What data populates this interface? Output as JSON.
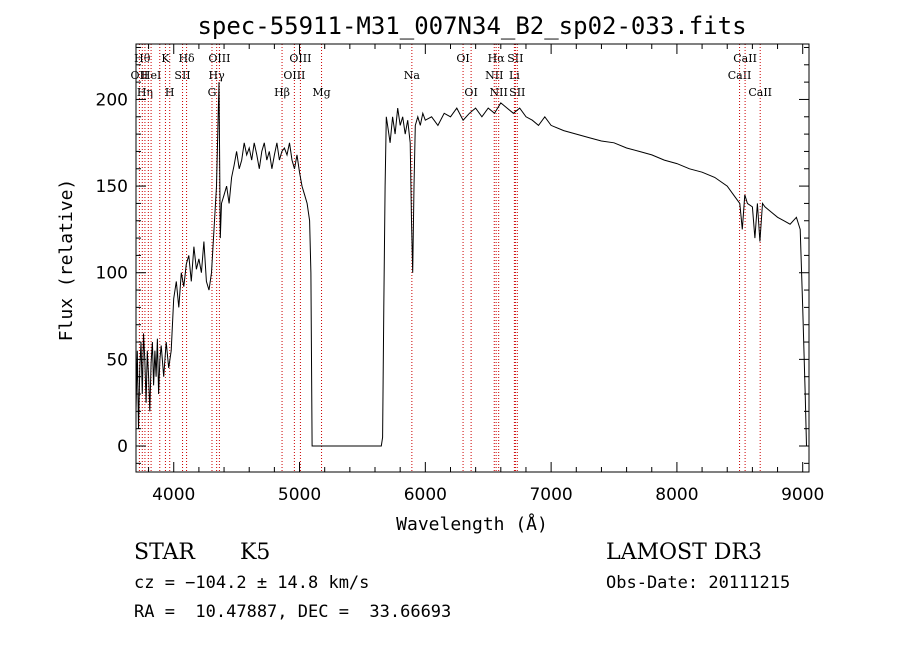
{
  "chart_data": {
    "type": "line",
    "title": "spec-55911-M31_007N34_B2_sp02-033.fits",
    "xlabel": "Wavelength (Å)",
    "ylabel": "Flux (relative)",
    "xlim": [
      3700,
      9050
    ],
    "ylim": [
      -15,
      232
    ],
    "xticks": [
      4000,
      5000,
      6000,
      7000,
      8000,
      9000
    ],
    "yticks": [
      0,
      50,
      100,
      150,
      200
    ],
    "grid": false,
    "line_color": "#000000",
    "marker_color": "#cc0000",
    "series": [
      {
        "points": [
          [
            3700,
            20
          ],
          [
            3710,
            55
          ],
          [
            3720,
            10
          ],
          [
            3730,
            45
          ],
          [
            3740,
            60
          ],
          [
            3750,
            30
          ],
          [
            3760,
            65
          ],
          [
            3770,
            50
          ],
          [
            3780,
            25
          ],
          [
            3790,
            55
          ],
          [
            3800,
            40
          ],
          [
            3810,
            20
          ],
          [
            3820,
            48
          ],
          [
            3830,
            60
          ],
          [
            3840,
            35
          ],
          [
            3850,
            55
          ],
          [
            3860,
            40
          ],
          [
            3870,
            62
          ],
          [
            3880,
            30
          ],
          [
            3890,
            50
          ],
          [
            3900,
            58
          ],
          [
            3920,
            40
          ],
          [
            3940,
            60
          ],
          [
            3960,
            45
          ],
          [
            3980,
            55
          ],
          [
            4000,
            85
          ],
          [
            4020,
            95
          ],
          [
            4040,
            80
          ],
          [
            4060,
            100
          ],
          [
            4080,
            92
          ],
          [
            4100,
            105
          ],
          [
            4120,
            110
          ],
          [
            4140,
            95
          ],
          [
            4160,
            115
          ],
          [
            4180,
            102
          ],
          [
            4200,
            108
          ],
          [
            4220,
            100
          ],
          [
            4240,
            118
          ],
          [
            4260,
            95
          ],
          [
            4280,
            90
          ],
          [
            4300,
            100
          ],
          [
            4320,
            125
          ],
          [
            4340,
            150
          ],
          [
            4360,
            210
          ],
          [
            4370,
            120
          ],
          [
            4380,
            140
          ],
          [
            4400,
            145
          ],
          [
            4420,
            150
          ],
          [
            4440,
            140
          ],
          [
            4460,
            155
          ],
          [
            4480,
            162
          ],
          [
            4500,
            170
          ],
          [
            4520,
            160
          ],
          [
            4540,
            165
          ],
          [
            4560,
            175
          ],
          [
            4580,
            168
          ],
          [
            4600,
            172
          ],
          [
            4620,
            165
          ],
          [
            4640,
            175
          ],
          [
            4660,
            168
          ],
          [
            4680,
            160
          ],
          [
            4700,
            170
          ],
          [
            4720,
            175
          ],
          [
            4740,
            165
          ],
          [
            4760,
            170
          ],
          [
            4780,
            160
          ],
          [
            4800,
            168
          ],
          [
            4820,
            175
          ],
          [
            4840,
            165
          ],
          [
            4860,
            170
          ],
          [
            4880,
            172
          ],
          [
            4900,
            168
          ],
          [
            4920,
            175
          ],
          [
            4940,
            165
          ],
          [
            4960,
            160
          ],
          [
            4980,
            168
          ],
          [
            5000,
            158
          ],
          [
            5020,
            150
          ],
          [
            5040,
            145
          ],
          [
            5060,
            140
          ],
          [
            5080,
            130
          ],
          [
            5090,
            100
          ],
          [
            5100,
            0
          ],
          [
            5200,
            0
          ],
          [
            5400,
            0
          ],
          [
            5600,
            0
          ],
          [
            5650,
            0
          ],
          [
            5660,
            5
          ],
          [
            5670,
            80
          ],
          [
            5680,
            150
          ],
          [
            5690,
            190
          ],
          [
            5700,
            185
          ],
          [
            5720,
            175
          ],
          [
            5740,
            190
          ],
          [
            5760,
            180
          ],
          [
            5780,
            195
          ],
          [
            5800,
            185
          ],
          [
            5820,
            190
          ],
          [
            5840,
            180
          ],
          [
            5860,
            188
          ],
          [
            5880,
            175
          ],
          [
            5890,
            130
          ],
          [
            5900,
            100
          ],
          [
            5910,
            150
          ],
          [
            5920,
            185
          ],
          [
            5940,
            190
          ],
          [
            5960,
            185
          ],
          [
            5980,
            192
          ],
          [
            6000,
            188
          ],
          [
            6050,
            190
          ],
          [
            6100,
            185
          ],
          [
            6150,
            192
          ],
          [
            6200,
            190
          ],
          [
            6250,
            195
          ],
          [
            6300,
            188
          ],
          [
            6350,
            192
          ],
          [
            6400,
            195
          ],
          [
            6450,
            190
          ],
          [
            6500,
            195
          ],
          [
            6550,
            192
          ],
          [
            6600,
            198
          ],
          [
            6650,
            195
          ],
          [
            6700,
            192
          ],
          [
            6750,
            195
          ],
          [
            6800,
            190
          ],
          [
            6850,
            188
          ],
          [
            6900,
            185
          ],
          [
            6950,
            190
          ],
          [
            7000,
            185
          ],
          [
            7100,
            182
          ],
          [
            7200,
            180
          ],
          [
            7300,
            178
          ],
          [
            7400,
            176
          ],
          [
            7500,
            175
          ],
          [
            7600,
            172
          ],
          [
            7700,
            170
          ],
          [
            7800,
            168
          ],
          [
            7900,
            165
          ],
          [
            8000,
            163
          ],
          [
            8100,
            160
          ],
          [
            8200,
            158
          ],
          [
            8300,
            155
          ],
          [
            8400,
            150
          ],
          [
            8450,
            145
          ],
          [
            8500,
            140
          ],
          [
            8520,
            125
          ],
          [
            8540,
            145
          ],
          [
            8560,
            140
          ],
          [
            8600,
            138
          ],
          [
            8620,
            120
          ],
          [
            8640,
            140
          ],
          [
            8660,
            118
          ],
          [
            8680,
            140
          ],
          [
            8700,
            138
          ],
          [
            8750,
            135
          ],
          [
            8800,
            132
          ],
          [
            8850,
            130
          ],
          [
            8900,
            128
          ],
          [
            8950,
            132
          ],
          [
            8980,
            125
          ],
          [
            9000,
            80
          ],
          [
            9020,
            30
          ],
          [
            9030,
            0
          ]
        ]
      }
    ],
    "line_markers": [
      {
        "wl": 3727,
        "label": "OII",
        "row": 2
      },
      {
        "wl": 3750,
        "label": "Hθ",
        "row": 1
      },
      {
        "wl": 3771,
        "label": "Hη",
        "row": 3
      },
      {
        "wl": 3798,
        "label": "",
        "row": 1
      },
      {
        "wl": 3820,
        "label": "HeI",
        "row": 2
      },
      {
        "wl": 3889,
        "label": "",
        "row": 1
      },
      {
        "wl": 3934,
        "label": "K",
        "row": 1
      },
      {
        "wl": 3968,
        "label": "H",
        "row": 3
      },
      {
        "wl": 4070,
        "label": "SII",
        "row": 2
      },
      {
        "wl": 4102,
        "label": "Hδ",
        "row": 1
      },
      {
        "wl": 4304,
        "label": "G",
        "row": 3
      },
      {
        "wl": 4341,
        "label": "Hγ",
        "row": 2
      },
      {
        "wl": 4363,
        "label": "OIII",
        "row": 1
      },
      {
        "wl": 4861,
        "label": "Hβ",
        "row": 3
      },
      {
        "wl": 4959,
        "label": "OIII",
        "row": 2
      },
      {
        "wl": 5007,
        "label": "OIII",
        "row": 1
      },
      {
        "wl": 5175,
        "label": "Mg",
        "row": 3
      },
      {
        "wl": 5893,
        "label": "Na",
        "row": 2
      },
      {
        "wl": 6300,
        "label": "OI",
        "row": 1
      },
      {
        "wl": 6364,
        "label": "OI",
        "row": 3
      },
      {
        "wl": 6548,
        "label": "NII",
        "row": 2
      },
      {
        "wl": 6563,
        "label": "Hα",
        "row": 1
      },
      {
        "wl": 6583,
        "label": "NII",
        "row": 3
      },
      {
        "wl": 6708,
        "label": "Li",
        "row": 2
      },
      {
        "wl": 6716,
        "label": "SII",
        "row": 1
      },
      {
        "wl": 6731,
        "label": "SII",
        "row": 3
      },
      {
        "wl": 8498,
        "label": "CaII",
        "row": 2
      },
      {
        "wl": 8542,
        "label": "CaII",
        "row": 1
      },
      {
        "wl": 8662,
        "label": "CaII",
        "row": 3
      }
    ]
  },
  "info": {
    "class_label": "STAR",
    "subclass_label": "K5",
    "cz_line": "cz = −104.2 ± 14.8 km/s",
    "radec_line": "RA =  10.47887, DEC =  33.66693",
    "survey_label": "LAMOST DR3",
    "obs_date_line": "Obs-Date: 20111215"
  }
}
